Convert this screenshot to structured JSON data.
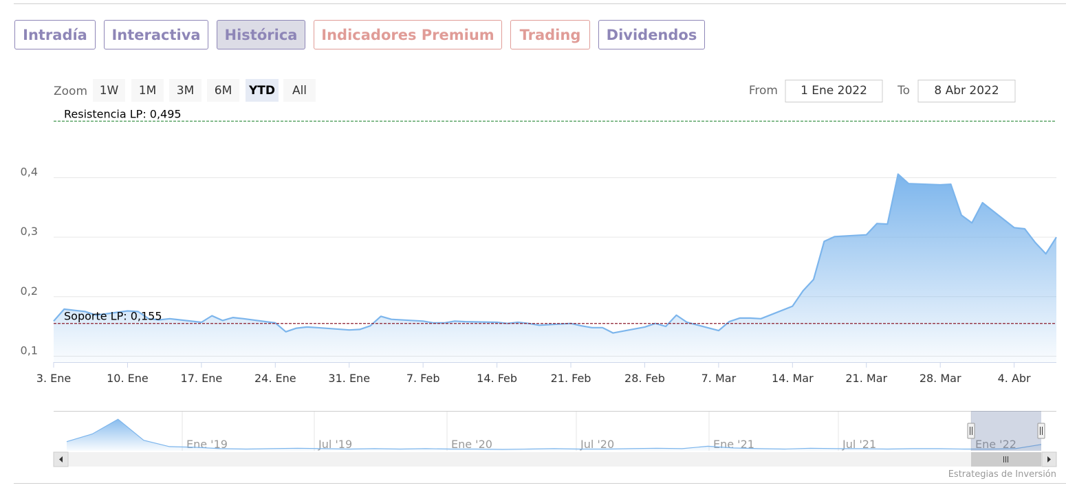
{
  "tabs": [
    {
      "label": "Intradía",
      "style": "purple",
      "active": false
    },
    {
      "label": "Interactiva",
      "style": "purple",
      "active": false
    },
    {
      "label": "Histórica",
      "style": "purple",
      "active": true
    },
    {
      "label": "Indicadores Premium",
      "style": "red",
      "active": false
    },
    {
      "label": "Trading",
      "style": "red",
      "active": false
    },
    {
      "label": "Dividendos",
      "style": "purple",
      "active": false
    }
  ],
  "zoom": {
    "label": "Zoom",
    "buttons": [
      "1W",
      "1M",
      "3M",
      "6M",
      "YTD",
      "All"
    ],
    "selected": "YTD"
  },
  "range": {
    "from_label": "From",
    "from_value": "1 Ene 2022",
    "to_label": "To",
    "to_value": "8 Abr 2022"
  },
  "credits": "Estrategias de Inversión",
  "colors": {
    "line": "#7cb5ec",
    "resistance": "#2e8b3d",
    "support": "#8b1a2b",
    "tab_purple": "#8e86b7",
    "tab_red": "#e09c97"
  },
  "chart_data": {
    "type": "area",
    "title": "",
    "xlabel": "",
    "ylabel": "",
    "ylim": [
      0.09,
      0.5
    ],
    "yticks": [
      0.1,
      0.2,
      0.3,
      0.4
    ],
    "ytick_labels": [
      "0,1",
      "0,2",
      "0,3",
      "0,4"
    ],
    "x_ticks": [
      {
        "label": "3. Ene",
        "date": "2022-01-03"
      },
      {
        "label": "10. Ene",
        "date": "2022-01-10"
      },
      {
        "label": "17. Ene",
        "date": "2022-01-17"
      },
      {
        "label": "24. Ene",
        "date": "2022-01-24"
      },
      {
        "label": "31. Ene",
        "date": "2022-01-31"
      },
      {
        "label": "7. Feb",
        "date": "2022-02-07"
      },
      {
        "label": "14. Feb",
        "date": "2022-02-14"
      },
      {
        "label": "21. Feb",
        "date": "2022-02-21"
      },
      {
        "label": "28. Feb",
        "date": "2022-02-28"
      },
      {
        "label": "7. Mar",
        "date": "2022-03-07"
      },
      {
        "label": "14. Mar",
        "date": "2022-03-14"
      },
      {
        "label": "21. Mar",
        "date": "2022-03-21"
      },
      {
        "label": "28. Mar",
        "date": "2022-03-28"
      },
      {
        "label": "4. Abr",
        "date": "2022-04-04"
      }
    ],
    "series": [
      {
        "values": [
          [
            "2022-01-03",
            0.159
          ],
          [
            "2022-01-04",
            0.179
          ],
          [
            "2022-01-05",
            0.177
          ],
          [
            "2022-01-06",
            0.175
          ],
          [
            "2022-01-07",
            0.169
          ],
          [
            "2022-01-10",
            0.176
          ],
          [
            "2022-01-11",
            0.175
          ],
          [
            "2022-01-12",
            0.163
          ],
          [
            "2022-01-13",
            0.161
          ],
          [
            "2022-01-14",
            0.163
          ],
          [
            "2022-01-17",
            0.157
          ],
          [
            "2022-01-18",
            0.168
          ],
          [
            "2022-01-19",
            0.16
          ],
          [
            "2022-01-20",
            0.165
          ],
          [
            "2022-01-21",
            0.163
          ],
          [
            "2022-01-24",
            0.156
          ],
          [
            "2022-01-25",
            0.141
          ],
          [
            "2022-01-26",
            0.147
          ],
          [
            "2022-01-27",
            0.149
          ],
          [
            "2022-01-28",
            0.148
          ],
          [
            "2022-01-31",
            0.144
          ],
          [
            "2022-02-01",
            0.145
          ],
          [
            "2022-02-02",
            0.151
          ],
          [
            "2022-02-03",
            0.167
          ],
          [
            "2022-02-04",
            0.162
          ],
          [
            "2022-02-07",
            0.159
          ],
          [
            "2022-02-08",
            0.156
          ],
          [
            "2022-02-09",
            0.156
          ],
          [
            "2022-02-10",
            0.159
          ],
          [
            "2022-02-11",
            0.158
          ],
          [
            "2022-02-14",
            0.157
          ],
          [
            "2022-02-15",
            0.155
          ],
          [
            "2022-02-16",
            0.157
          ],
          [
            "2022-02-17",
            0.155
          ],
          [
            "2022-02-18",
            0.152
          ],
          [
            "2022-02-21",
            0.155
          ],
          [
            "2022-02-22",
            0.151
          ],
          [
            "2022-02-23",
            0.148
          ],
          [
            "2022-02-24",
            0.148
          ],
          [
            "2022-02-25",
            0.139
          ],
          [
            "2022-02-28",
            0.149
          ],
          [
            "2022-03-01",
            0.155
          ],
          [
            "2022-03-02",
            0.15
          ],
          [
            "2022-03-03",
            0.169
          ],
          [
            "2022-03-04",
            0.157
          ],
          [
            "2022-03-07",
            0.143
          ],
          [
            "2022-03-08",
            0.158
          ],
          [
            "2022-03-09",
            0.164
          ],
          [
            "2022-03-10",
            0.164
          ],
          [
            "2022-03-11",
            0.163
          ],
          [
            "2022-03-14",
            0.184
          ],
          [
            "2022-03-15",
            0.21
          ],
          [
            "2022-03-16",
            0.229
          ],
          [
            "2022-03-17",
            0.293
          ],
          [
            "2022-03-18",
            0.301
          ],
          [
            "2022-03-21",
            0.304
          ],
          [
            "2022-03-22",
            0.323
          ],
          [
            "2022-03-23",
            0.322
          ],
          [
            "2022-03-24",
            0.406
          ],
          [
            "2022-03-25",
            0.39
          ],
          [
            "2022-03-28",
            0.388
          ],
          [
            "2022-03-29",
            0.389
          ],
          [
            "2022-03-30",
            0.337
          ],
          [
            "2022-03-31",
            0.324
          ],
          [
            "2022-04-01",
            0.358
          ],
          [
            "2022-04-04",
            0.316
          ],
          [
            "2022-04-05",
            0.314
          ],
          [
            "2022-04-06",
            0.291
          ],
          [
            "2022-04-07",
            0.272
          ],
          [
            "2022-04-08",
            0.3
          ]
        ]
      }
    ],
    "annotations": [
      {
        "label": "Resistencia LP: 0,495",
        "value": 0.495,
        "color": "#2e8b3d"
      },
      {
        "label": "Soporte LP: 0,155",
        "value": 0.155,
        "color": "#8b1a2b"
      }
    ],
    "navigator": {
      "labels": [
        "Ene '19",
        "Jul '19",
        "Ene '20",
        "Jul '20",
        "Ene '21",
        "Jul '21",
        "Ene '22"
      ],
      "values": [
        0.26,
        0.48,
        0.9,
        0.3,
        0.12,
        0.1,
        0.06,
        0.05,
        0.06,
        0.07,
        0.06,
        0.05,
        0.06,
        0.05,
        0.06,
        0.05,
        0.05,
        0.04,
        0.05,
        0.06,
        0.05,
        0.05,
        0.06,
        0.07,
        0.06,
        0.13,
        0.08,
        0.06,
        0.05,
        0.07,
        0.06,
        0.06,
        0.05,
        0.06,
        0.06,
        0.05,
        0.05,
        0.06,
        0.18
      ]
    }
  }
}
